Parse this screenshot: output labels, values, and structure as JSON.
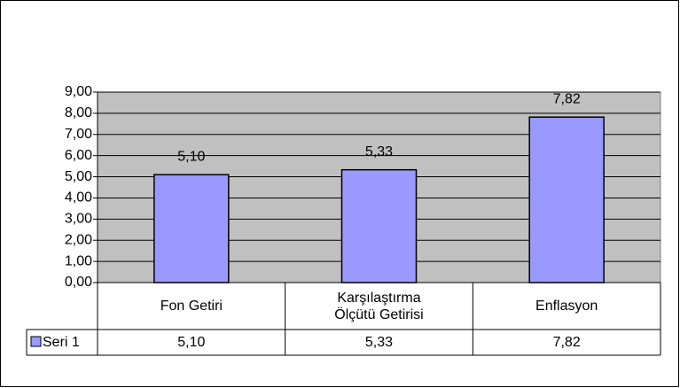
{
  "chart_data": {
    "type": "bar",
    "categories": [
      "Fon Getiri",
      "Karşılaştırma Ölçütü Getirisi",
      "Enflasyon"
    ],
    "series": [
      {
        "name": "Seri 1",
        "color": "#9999ff",
        "values": [
          5.1,
          5.33,
          7.82
        ],
        "value_labels": [
          "5,10",
          "5,33",
          "7,82"
        ]
      }
    ],
    "ylim": [
      0,
      9
    ],
    "yticks": [
      {
        "value": 0,
        "label": "0,00"
      },
      {
        "value": 1,
        "label": "1,00"
      },
      {
        "value": 2,
        "label": "2,00"
      },
      {
        "value": 3,
        "label": "3,00"
      },
      {
        "value": 4,
        "label": "4,00"
      },
      {
        "value": 5,
        "label": "5,00"
      },
      {
        "value": 6,
        "label": "6,00"
      },
      {
        "value": 7,
        "label": "7,00"
      },
      {
        "value": 8,
        "label": "8,00"
      },
      {
        "value": 9,
        "label": "9,00"
      }
    ],
    "grid": true,
    "plot_background": "#c0c0c0"
  }
}
